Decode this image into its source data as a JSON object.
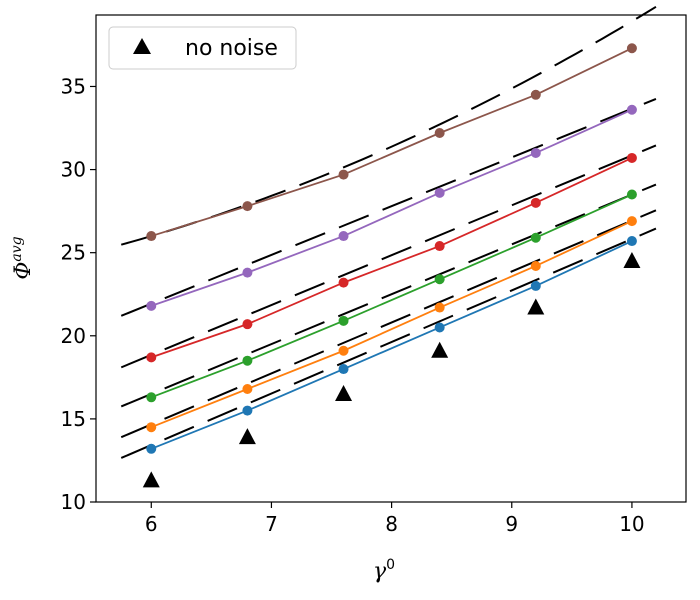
{
  "chart_data": {
    "type": "line",
    "xlabel": "γ",
    "xlabel_sup": "0",
    "ylabel": "Φ",
    "ylabel_sup": "avg",
    "xlim": [
      5.54,
      10.45
    ],
    "ylim": [
      10,
      39.3
    ],
    "xticks": [
      "6",
      "7",
      "8",
      "9",
      "10"
    ],
    "yticks": [
      "10",
      "15",
      "20",
      "25",
      "30",
      "35"
    ],
    "x": [
      6.0,
      6.8,
      7.6,
      8.4,
      9.2,
      10.0
    ],
    "legend": {
      "position": "top-left",
      "label": "no noise"
    },
    "series": [
      {
        "color": "#1f77b4",
        "values": [
          13.2,
          15.5,
          18.0,
          20.5,
          23.0,
          25.7
        ]
      },
      {
        "color": "#ff7f0e",
        "values": [
          14.5,
          16.8,
          19.1,
          21.7,
          24.2,
          26.9
        ]
      },
      {
        "color": "#2ca02c",
        "values": [
          16.3,
          18.5,
          20.9,
          23.4,
          25.9,
          28.5
        ]
      },
      {
        "color": "#d62728",
        "values": [
          18.7,
          20.7,
          23.2,
          25.4,
          28.0,
          30.7
        ]
      },
      {
        "color": "#9467bd",
        "values": [
          21.8,
          23.8,
          26.0,
          28.6,
          31.0,
          33.6
        ]
      },
      {
        "color": "#8c564b",
        "values": [
          26.0,
          27.8,
          29.7,
          32.2,
          34.5,
          37.3
        ]
      }
    ],
    "fit_lines": [
      {
        "color": "#000000",
        "x": [
          5.75,
          10.2
        ],
        "y": [
          12.65,
          26.45
        ]
      },
      {
        "color": "#000000",
        "x": [
          5.75,
          10.2
        ],
        "y": [
          13.9,
          27.55
        ]
      },
      {
        "color": "#000000",
        "x": [
          5.75,
          10.2
        ],
        "y": [
          15.75,
          29.1
        ]
      },
      {
        "color": "#000000",
        "x": [
          5.75,
          10.2
        ],
        "y": [
          18.1,
          31.45
        ]
      },
      {
        "color": "#000000",
        "x": [
          5.75,
          10.2
        ],
        "y": [
          21.2,
          34.25
        ]
      }
    ],
    "curve_fit": {
      "color": "#000000",
      "a": 0.27,
      "b": 26.0,
      "c": 2.15,
      "x": [
        5.75,
        10.2
      ]
    },
    "no_noise": {
      "color": "#000000",
      "values": [
        11.3,
        13.9,
        16.5,
        19.1,
        21.7,
        24.5
      ]
    }
  }
}
